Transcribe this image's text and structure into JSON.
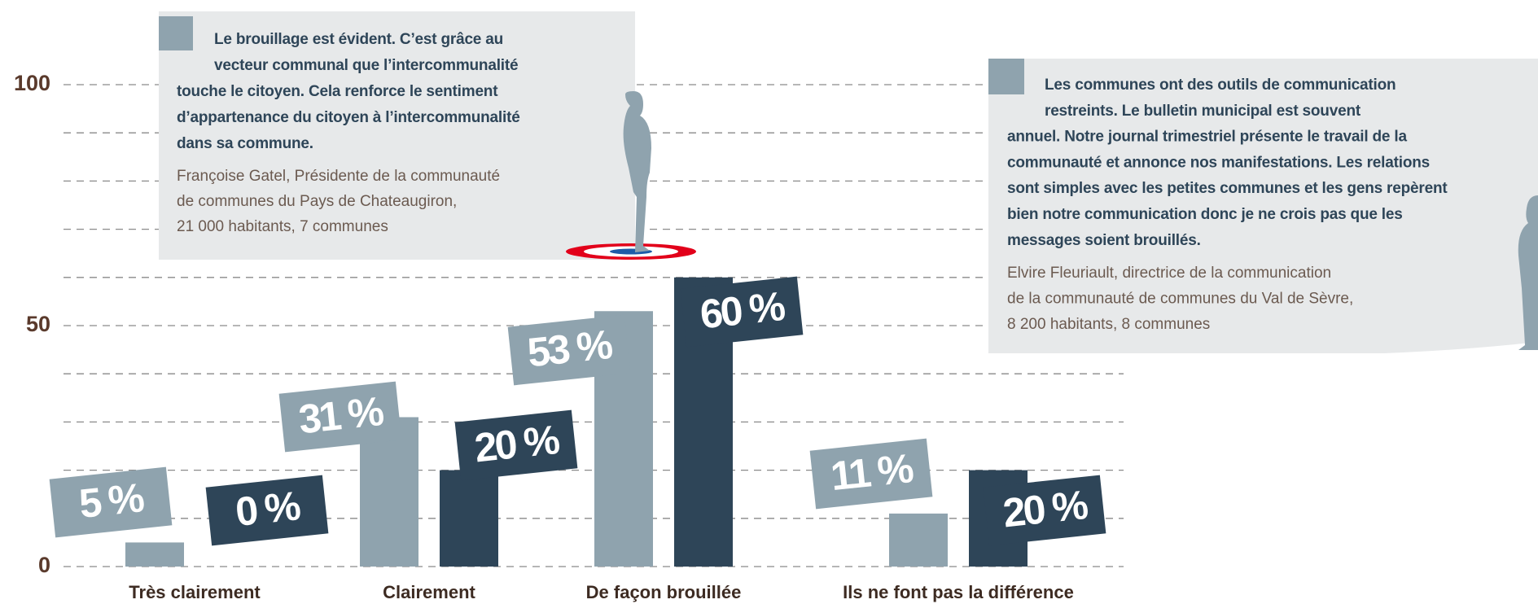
{
  "chart_data": {
    "type": "bar",
    "categories": [
      "Très clairement",
      "Clairement",
      "De façon brouillée",
      "Ils ne font pas la différence"
    ],
    "series": [
      {
        "color": "#8fa3ae",
        "values": [
          5,
          31,
          53,
          11
        ],
        "value_labels": [
          "5 %",
          "31 %",
          "53 %",
          "11 %"
        ]
      },
      {
        "color": "#2e4558",
        "values": [
          0,
          20,
          60,
          20
        ],
        "value_labels": [
          "0 %",
          "20 %",
          "60 %",
          "20 %"
        ]
      }
    ],
    "ylim": [
      0,
      100
    ],
    "yticks": [
      0,
      50,
      100
    ],
    "minor_yticks": [
      10,
      20,
      30,
      40,
      60,
      70,
      80,
      90
    ],
    "grid": true,
    "annotations": [
      {
        "quote": [
          "Le brouillage est évident. C’est grâce au",
          "vecteur communal que l’intercommunalité",
          "touche le citoyen. Cela renforce le sentiment",
          "d’appartenance du citoyen à l’intercommunalité",
          "dans sa commune."
        ],
        "attribution": [
          "Françoise Gatel, Présidente de la communauté",
          "de communes du Pays de Chateaugiron,",
          "21 000 habitants, 7 communes"
        ]
      },
      {
        "quote": [
          "Les communes ont des outils de communication",
          "restreints. Le bulletin municipal est souvent",
          "annuel. Notre journal trimestriel présente le travail de la",
          "communauté et annonce nos manifestations. Les relations",
          "sont simples avec les petites communes et les gens repèrent",
          "bien notre communication donc je ne crois pas que les",
          "messages soient brouillés."
        ],
        "attribution": [
          "Elvire Fleuriault, directrice de la communication",
          "de la communauté de communes du Val de Sèvre,",
          "8 200 habitants, 8 communes"
        ]
      }
    ]
  }
}
